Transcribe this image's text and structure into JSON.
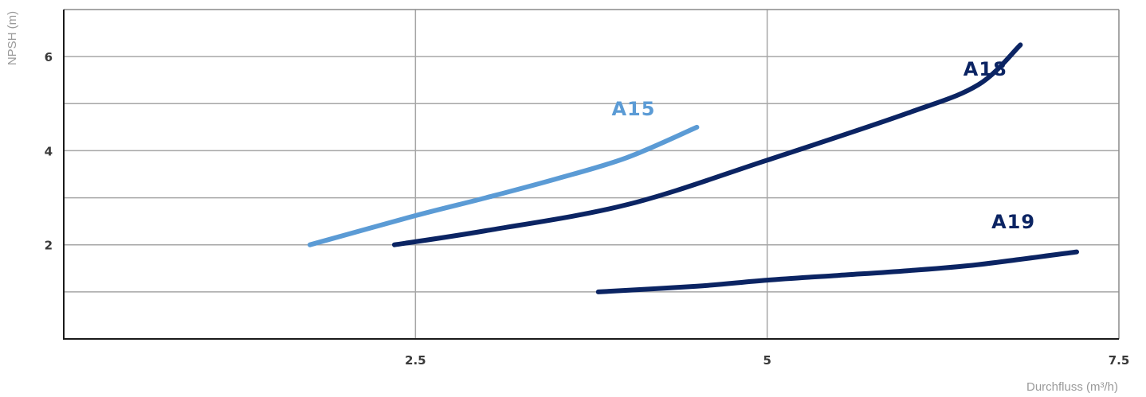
{
  "chart_data": {
    "type": "line",
    "xlabel": "Durchfluss (m³/h)",
    "ylabel": "NPSH (m)",
    "xlim": [
      0,
      7.5
    ],
    "ylim": [
      0,
      7
    ],
    "x_ticks": [
      "2.5",
      "5",
      "7.5"
    ],
    "y_ticks": [
      "2",
      "4",
      "6"
    ],
    "grid": true,
    "series": [
      {
        "name": "A15",
        "color": "#5b9bd5",
        "points": [
          [
            1.75,
            2.0
          ],
          [
            2.5,
            2.62
          ],
          [
            3.0,
            3.0
          ],
          [
            3.5,
            3.4
          ],
          [
            4.0,
            3.85
          ],
          [
            4.5,
            4.5
          ]
        ]
      },
      {
        "name": "A18",
        "color": "#0b2463",
        "points": [
          [
            2.35,
            2.0
          ],
          [
            3.0,
            2.3
          ],
          [
            4.0,
            2.85
          ],
          [
            5.0,
            3.8
          ],
          [
            6.0,
            4.8
          ],
          [
            6.5,
            5.4
          ],
          [
            6.8,
            6.25
          ]
        ]
      },
      {
        "name": "A19",
        "color": "#0b2463",
        "points": [
          [
            3.8,
            1.0
          ],
          [
            4.5,
            1.12
          ],
          [
            5.0,
            1.25
          ],
          [
            5.5,
            1.35
          ],
          [
            6.0,
            1.45
          ],
          [
            6.5,
            1.58
          ],
          [
            7.2,
            1.85
          ]
        ]
      }
    ]
  }
}
